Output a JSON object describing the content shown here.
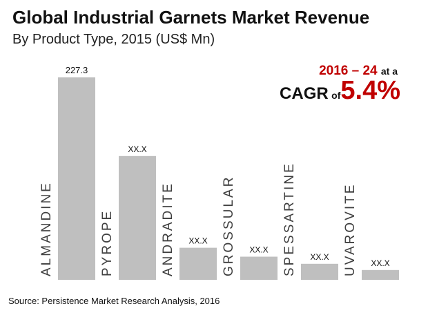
{
  "header": {
    "title": "Global Industrial Garnets Market Revenue",
    "subtitle": "By Product Type, 2015 (US$ Mn)"
  },
  "cagr": {
    "period": "2016 – 24",
    "at_a": "at a",
    "label": "CAGR",
    "of": "of",
    "value": "5.4%"
  },
  "source": "Source: Persistence Market Research Analysis, 2016",
  "colors": {
    "bar": "#bfbfbf",
    "accent": "#c00000",
    "category_label": "#404040"
  },
  "chart_data": {
    "type": "bar",
    "categories": [
      "ALMANDINE",
      "PYROPE",
      "ANDRADITE",
      "GROSSULAR",
      "SPESSARTINE",
      "UVAROVITE"
    ],
    "values": [
      227.3,
      139,
      36,
      26,
      18,
      11
    ],
    "data_labels": [
      "227.3",
      "XX.X",
      "XX.X",
      "XX.X",
      "XX.X",
      "XX.X"
    ],
    "ylim": [
      0,
      227.3
    ],
    "grid": false,
    "xlabel": "",
    "ylabel": ""
  }
}
